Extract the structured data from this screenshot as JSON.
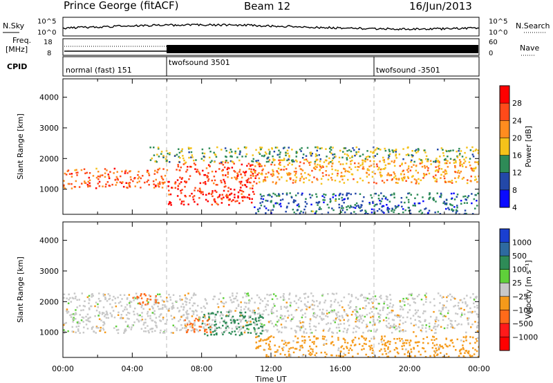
{
  "header": {
    "station": "Prince George (fitACF)",
    "beam": "Beam 12",
    "date": "16/Jun/2013"
  },
  "noise_panel": {
    "left_label": "N.Sky",
    "right_label": "N.Search",
    "left_ticks": [
      "10^5",
      "10^0"
    ],
    "right_ticks": [
      "10^5",
      "10^0"
    ]
  },
  "freq_panel": {
    "left_label": "Freq.",
    "left_unit": "[MHz]",
    "right_label": "Nave",
    "left_ticks": [
      "18",
      "8"
    ],
    "right_ticks": [
      "60",
      "0"
    ]
  },
  "cpid_panel": {
    "label": "CPID",
    "programs": [
      {
        "name": "normal (fast) 151",
        "start_hour": 0,
        "end_hour": 6
      },
      {
        "name": "twofsound 3501",
        "start_hour": 6,
        "end_hour": 18
      },
      {
        "name": "twofsound -3501",
        "start_hour": 18,
        "end_hour": 24
      }
    ]
  },
  "power_panel": {
    "ylabel": "Slant Range [km]",
    "colorbar_label": "Power [dB]",
    "colorbar_ticks": [
      "28",
      "24",
      "20",
      "16",
      "12",
      "8",
      "4"
    ],
    "colorbar_colors": [
      "#ff0000",
      "#ff4a1a",
      "#ff8c1f",
      "#f5c21a",
      "#2e8b57",
      "#2348a8",
      "#0a0aff"
    ]
  },
  "velocity_panel": {
    "ylabel": "Slant Range [km]",
    "colorbar_label": "Velocity [m s⁻¹]",
    "colorbar_ticks": [
      "1000",
      "500",
      "100",
      "25",
      "−25",
      "−100",
      "−500",
      "−1000"
    ],
    "colorbar_colors": [
      "#1a3fd0",
      "#2e6aa0",
      "#2e8b57",
      "#5fd03a",
      "#c8c8c8",
      "#f59a1a",
      "#ff6a1a",
      "#ff1a1a",
      "#ff0000"
    ]
  },
  "chart_data": [
    {
      "type": "heatmap",
      "name": "power",
      "x_range_hours": [
        0,
        24
      ],
      "xlabel": "Time UT",
      "ylabel": "Slant Range [km]",
      "ylim": [
        180,
        4600
      ],
      "y_ticks": [
        1000,
        2000,
        3000,
        4000
      ],
      "x_tick_labels": [
        "00:00",
        "04:00",
        "08:00",
        "12:00",
        "16:00",
        "20:00",
        "00:00"
      ],
      "colorbar_range_db": [
        0,
        30
      ],
      "scatter_bands": [
        {
          "t0": 0.0,
          "t1": 6.0,
          "r0": 1050,
          "r1": 1700,
          "value_db": 22
        },
        {
          "t0": 6.0,
          "t1": 11.0,
          "r0": 500,
          "r1": 1300,
          "value_db": 26
        },
        {
          "t0": 6.5,
          "t1": 11.5,
          "r0": 1300,
          "r1": 1900,
          "value_db": 24
        },
        {
          "t0": 11.0,
          "t1": 24.0,
          "r0": 1200,
          "r1": 2000,
          "value_db": 18
        },
        {
          "t0": 11.0,
          "t1": 24.0,
          "r0": 200,
          "r1": 900,
          "value_db": 8
        },
        {
          "t0": 5.0,
          "t1": 24.0,
          "r0": 1900,
          "r1": 2400,
          "value_db": 12
        }
      ]
    },
    {
      "type": "heatmap",
      "name": "velocity",
      "x_range_hours": [
        0,
        24
      ],
      "xlabel": "Time UT",
      "ylabel": "Slant Range [km]",
      "ylim": [
        180,
        4600
      ],
      "y_ticks": [
        1000,
        2000,
        3000,
        4000
      ],
      "x_tick_labels": [
        "00:00",
        "04:00",
        "08:00",
        "12:00",
        "16:00",
        "20:00",
        "00:00"
      ],
      "colorbar_range_ms": [
        -1000,
        1000
      ],
      "scatter_bands": [
        {
          "t0": 0.0,
          "t1": 24.0,
          "r0": 1000,
          "r1": 2300,
          "value": 0
        },
        {
          "t0": 8.0,
          "t1": 11.5,
          "r0": 900,
          "r1": 1700,
          "value": 300
        },
        {
          "t0": 7.0,
          "t1": 8.5,
          "r0": 1000,
          "r1": 1500,
          "value": -250
        },
        {
          "t0": 4.0,
          "t1": 5.5,
          "r0": 1900,
          "r1": 2300,
          "value": -200
        },
        {
          "t0": 11.0,
          "t1": 24.0,
          "r0": 200,
          "r1": 900,
          "value": -50
        }
      ]
    }
  ]
}
